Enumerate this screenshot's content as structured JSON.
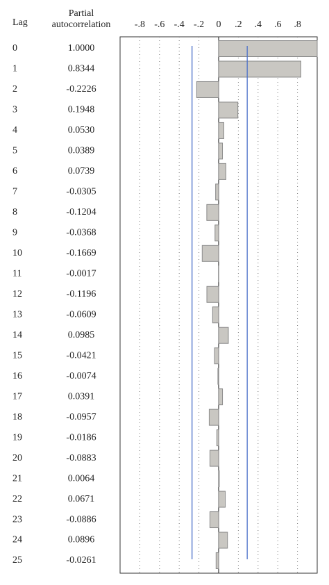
{
  "chart_data": {
    "type": "bar",
    "orientation": "horizontal",
    "columns": [
      "Lag",
      "Partial autocorrelation"
    ],
    "categories": [
      "0",
      "1",
      "2",
      "3",
      "4",
      "5",
      "6",
      "7",
      "8",
      "9",
      "10",
      "11",
      "12",
      "13",
      "14",
      "15",
      "16",
      "17",
      "18",
      "19",
      "20",
      "21",
      "22",
      "23",
      "24",
      "25"
    ],
    "values": [
      1.0,
      0.8344,
      -0.2226,
      0.1948,
      0.053,
      0.0389,
      0.0739,
      -0.0305,
      -0.1204,
      -0.0368,
      -0.1669,
      -0.0017,
      -0.1196,
      -0.0609,
      0.0985,
      -0.0421,
      -0.0074,
      0.0391,
      -0.0957,
      -0.0186,
      -0.0883,
      0.0064,
      0.0671,
      -0.0886,
      0.0896,
      -0.0261
    ],
    "value_labels": [
      "1.0000",
      "0.8344",
      "-0.2226",
      "0.1948",
      "0.0530",
      "0.0389",
      "0.0739",
      "-0.0305",
      "-0.1204",
      "-0.0368",
      "-0.1669",
      "-0.0017",
      "-0.1196",
      "-0.0609",
      "0.0985",
      "-0.0421",
      "-0.0074",
      "0.0391",
      "-0.0957",
      "-0.0186",
      "-0.0883",
      "0.0064",
      "0.0671",
      "-0.0886",
      "0.0896",
      "-0.0261"
    ],
    "color": "#c9c7c2",
    "confidence_limits": [
      -0.27,
      0.29
    ],
    "limit_color": "#4a6fc8",
    "xlim": [
      -1,
      1
    ],
    "xticks": [
      {
        "value": -0.8,
        "label": "-.8"
      },
      {
        "value": -0.6,
        "label": "-.6"
      },
      {
        "value": -0.4,
        "label": "-.4"
      },
      {
        "value": -0.2,
        "label": "-.2"
      },
      0,
      {
        "value": 0.2,
        "label": ".2"
      },
      {
        "value": 0.4,
        "label": ".4"
      },
      {
        "value": 0.6,
        "label": ".6"
      },
      {
        "value": 0.8,
        "label": ".8"
      }
    ],
    "grid": true
  }
}
